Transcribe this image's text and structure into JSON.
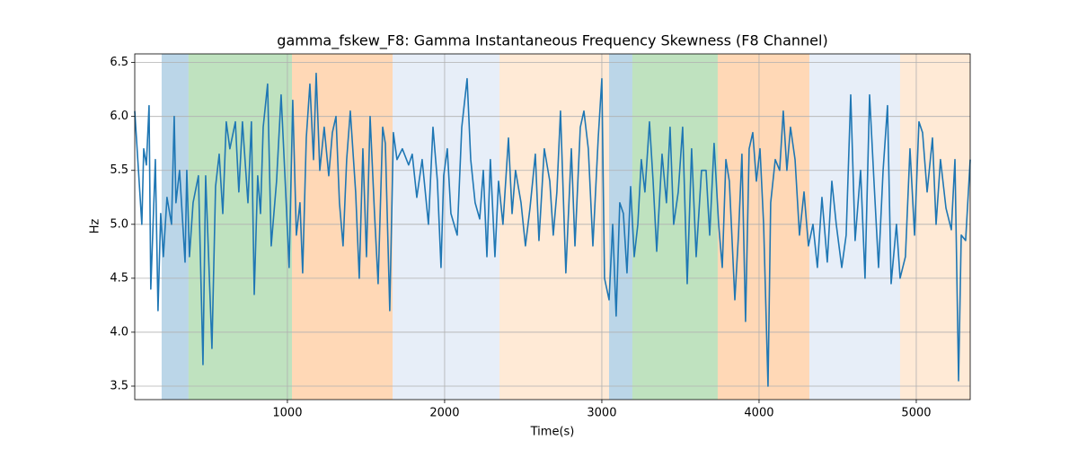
{
  "chart_data": {
    "type": "line",
    "title": "gamma_fskew_F8: Gamma Instantaneous Frequency Skewness (F8 Channel)",
    "x_label": "Time(s)",
    "y_label": "Hz",
    "xlim": [
      29,
      5343
    ],
    "ylim": [
      3.375,
      6.58
    ],
    "xticks": [
      1000,
      2000,
      3000,
      4000,
      5000
    ],
    "yticks": [
      3.5,
      {
        "value": 4,
        "label": "4.0"
      },
      4.5,
      {
        "value": 5,
        "label": "5.0"
      },
      5.5,
      {
        "value": 6,
        "label": "6.0"
      },
      6.5
    ],
    "grid": true,
    "spans": [
      {
        "start": 200,
        "end": 371,
        "color": "#1f77b4"
      },
      {
        "start": 371,
        "end": 1029,
        "color": "#2ca02c"
      },
      {
        "start": 1029,
        "end": 1669,
        "color": "#ff7f0e"
      },
      {
        "start": 1669,
        "end": 2349,
        "color": "#aec7e8"
      },
      {
        "start": 2349,
        "end": 3046,
        "color": "#ffbb78"
      },
      {
        "start": 3046,
        "end": 3194,
        "color": "#1f77b4"
      },
      {
        "start": 3194,
        "end": 3737,
        "color": "#2ca02c"
      },
      {
        "start": 3737,
        "end": 4320,
        "color": "#ff7f0e"
      },
      {
        "start": 4320,
        "end": 4897,
        "color": "#aec7e8"
      },
      {
        "start": 4897,
        "end": 5343,
        "color": "#ffbb78"
      }
    ],
    "series": [
      {
        "color": "#1f77b4",
        "x": [
          29,
          74,
          86,
          103,
          120,
          131,
          160,
          177,
          194,
          211,
          234,
          263,
          280,
          291,
          314,
          349,
          360,
          377,
          400,
          434,
          463,
          480,
          520,
          543,
          566,
          589,
          611,
          634,
          669,
          691,
          714,
          749,
          771,
          789,
          811,
          829,
          846,
          874,
          897,
          931,
          960,
          989,
          1011,
          1034,
          1057,
          1080,
          1097,
          1120,
          1143,
          1166,
          1183,
          1206,
          1234,
          1263,
          1286,
          1309,
          1331,
          1354,
          1377,
          1400,
          1434,
          1457,
          1480,
          1503,
          1526,
          1554,
          1577,
          1606,
          1623,
          1651,
          1674,
          1697,
          1731,
          1771,
          1794,
          1823,
          1857,
          1897,
          1926,
          1954,
          1977,
          1994,
          2017,
          2040,
          2080,
          2109,
          2143,
          2166,
          2194,
          2223,
          2246,
          2269,
          2291,
          2320,
          2343,
          2371,
          2406,
          2429,
          2451,
          2486,
          2514,
          2543,
          2577,
          2600,
          2634,
          2669,
          2691,
          2714,
          2737,
          2771,
          2806,
          2829,
          2863,
          2886,
          2914,
          2943,
          2977,
          3000,
          3017,
          3046,
          3069,
          3091,
          3114,
          3137,
          3160,
          3183,
          3206,
          3229,
          3251,
          3274,
          3303,
          3326,
          3349,
          3383,
          3411,
          3434,
          3457,
          3486,
          3514,
          3543,
          3571,
          3600,
          3634,
          3663,
          3686,
          3714,
          3743,
          3766,
          3789,
          3811,
          3846,
          3869,
          3891,
          3914,
          3937,
          3960,
          3983,
          4006,
          4029,
          4057,
          4074,
          4103,
          4131,
          4154,
          4177,
          4200,
          4229,
          4257,
          4286,
          4314,
          4343,
          4371,
          4400,
          4434,
          4463,
          4491,
          4526,
          4554,
          4583,
          4611,
          4646,
          4674,
          4703,
          4731,
          4760,
          4789,
          4817,
          4840,
          4874,
          4897,
          4931,
          4960,
          4989,
          5017,
          5040,
          5069,
          5103,
          5126,
          5154,
          5189,
          5223,
          5246,
          5269,
          5286,
          5314,
          5343
        ],
        "values": [
          6.05,
          5.0,
          5.7,
          5.55,
          6.1,
          4.4,
          5.6,
          4.2,
          5.1,
          4.7,
          5.25,
          5.0,
          6.0,
          5.2,
          5.5,
          4.65,
          5.5,
          4.7,
          5.2,
          5.45,
          3.7,
          5.45,
          3.85,
          5.35,
          5.65,
          5.1,
          5.95,
          5.7,
          5.95,
          5.3,
          5.95,
          5.2,
          5.95,
          4.35,
          5.45,
          5.1,
          5.9,
          6.3,
          4.8,
          5.4,
          6.2,
          5.3,
          4.6,
          6.15,
          4.9,
          5.2,
          4.55,
          5.8,
          6.3,
          5.6,
          6.4,
          5.5,
          5.9,
          5.45,
          5.85,
          6.0,
          5.2,
          4.8,
          5.6,
          6.05,
          5.3,
          4.5,
          5.7,
          4.7,
          6.0,
          5.1,
          4.45,
          5.9,
          5.75,
          4.2,
          5.85,
          5.6,
          5.7,
          5.55,
          5.65,
          5.25,
          5.6,
          5.0,
          5.9,
          5.4,
          4.6,
          5.45,
          5.7,
          5.1,
          4.9,
          5.9,
          6.35,
          5.6,
          5.2,
          5.05,
          5.5,
          4.7,
          5.6,
          4.7,
          5.4,
          5.0,
          5.8,
          5.1,
          5.5,
          5.2,
          4.8,
          5.15,
          5.65,
          4.85,
          5.7,
          5.4,
          4.9,
          5.3,
          6.05,
          4.55,
          5.7,
          4.8,
          5.9,
          6.05,
          5.7,
          4.8,
          5.8,
          6.35,
          4.5,
          4.3,
          5.0,
          4.15,
          5.2,
          5.1,
          4.55,
          5.35,
          4.7,
          5.0,
          5.6,
          5.3,
          5.95,
          5.4,
          4.75,
          5.65,
          5.2,
          5.9,
          5.0,
          5.3,
          5.9,
          4.45,
          5.7,
          4.7,
          5.5,
          5.5,
          4.9,
          5.75,
          5.0,
          4.6,
          5.6,
          5.4,
          4.3,
          4.9,
          5.65,
          4.1,
          5.7,
          5.85,
          5.4,
          5.7,
          5.0,
          3.5,
          5.2,
          5.6,
          5.5,
          6.05,
          5.5,
          5.9,
          5.6,
          4.9,
          5.3,
          4.8,
          5.0,
          4.6,
          5.25,
          4.65,
          5.4,
          5.0,
          4.6,
          4.9,
          6.2,
          4.85,
          5.5,
          4.5,
          6.2,
          5.4,
          4.6,
          5.5,
          6.1,
          4.45,
          5.0,
          4.5,
          4.7,
          5.7,
          4.9,
          5.95,
          5.85,
          5.3,
          5.8,
          5.0,
          5.6,
          5.15,
          4.95,
          5.6,
          3.55,
          4.9,
          4.85,
          5.6
        ]
      }
    ]
  }
}
